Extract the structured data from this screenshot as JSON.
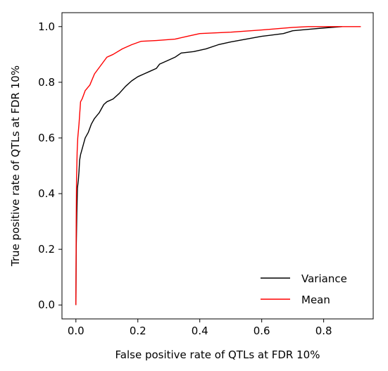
{
  "chart_data": {
    "type": "line",
    "title": "",
    "xlabel": "False positive rate of QTLs at FDR 10%",
    "ylabel": "True positive rate of QTLs at FDR 10%",
    "xlim": [
      -0.045,
      0.96
    ],
    "ylim": [
      -0.05,
      1.05
    ],
    "xticks": [
      0.0,
      0.2,
      0.4,
      0.6,
      0.8
    ],
    "xtick_labels": [
      "0.0",
      "0.2",
      "0.4",
      "0.6",
      "0.8"
    ],
    "yticks": [
      0.0,
      0.2,
      0.4,
      0.6,
      0.8,
      1.0
    ],
    "ytick_labels": [
      "0.0",
      "0.2",
      "0.4",
      "0.6",
      "0.8",
      "1.0"
    ],
    "grid": false,
    "legend_position": "lower-right",
    "series": [
      {
        "name": "Variance",
        "color": "#000000",
        "x": [
          0.0,
          0.001,
          0.003,
          0.005,
          0.008,
          0.01,
          0.012,
          0.015,
          0.02,
          0.025,
          0.03,
          0.04,
          0.05,
          0.06,
          0.075,
          0.09,
          0.1,
          0.12,
          0.14,
          0.16,
          0.18,
          0.2,
          0.22,
          0.24,
          0.26,
          0.27,
          0.3,
          0.32,
          0.34,
          0.38,
          0.42,
          0.46,
          0.5,
          0.55,
          0.6,
          0.67,
          0.7,
          0.75,
          0.8,
          0.86
        ],
        "y": [
          0.0,
          0.2,
          0.33,
          0.42,
          0.45,
          0.48,
          0.52,
          0.54,
          0.56,
          0.58,
          0.6,
          0.62,
          0.65,
          0.67,
          0.69,
          0.72,
          0.73,
          0.74,
          0.76,
          0.785,
          0.805,
          0.82,
          0.83,
          0.84,
          0.85,
          0.865,
          0.88,
          0.89,
          0.905,
          0.91,
          0.92,
          0.935,
          0.945,
          0.955,
          0.965,
          0.975,
          0.985,
          0.99,
          0.995,
          1.0
        ]
      },
      {
        "name": "Mean",
        "color": "#ff0000",
        "x": [
          0.0,
          0.001,
          0.002,
          0.004,
          0.006,
          0.01,
          0.015,
          0.02,
          0.03,
          0.045,
          0.06,
          0.08,
          0.1,
          0.12,
          0.15,
          0.18,
          0.21,
          0.26,
          0.32,
          0.36,
          0.4,
          0.5,
          0.6,
          0.7,
          0.75,
          0.8,
          0.85,
          0.92
        ],
        "y": [
          0.0,
          0.3,
          0.45,
          0.55,
          0.6,
          0.65,
          0.73,
          0.74,
          0.77,
          0.79,
          0.83,
          0.86,
          0.89,
          0.9,
          0.92,
          0.935,
          0.947,
          0.95,
          0.955,
          0.965,
          0.975,
          0.98,
          0.988,
          0.997,
          1.0,
          1.0,
          1.0,
          1.0
        ]
      }
    ]
  }
}
